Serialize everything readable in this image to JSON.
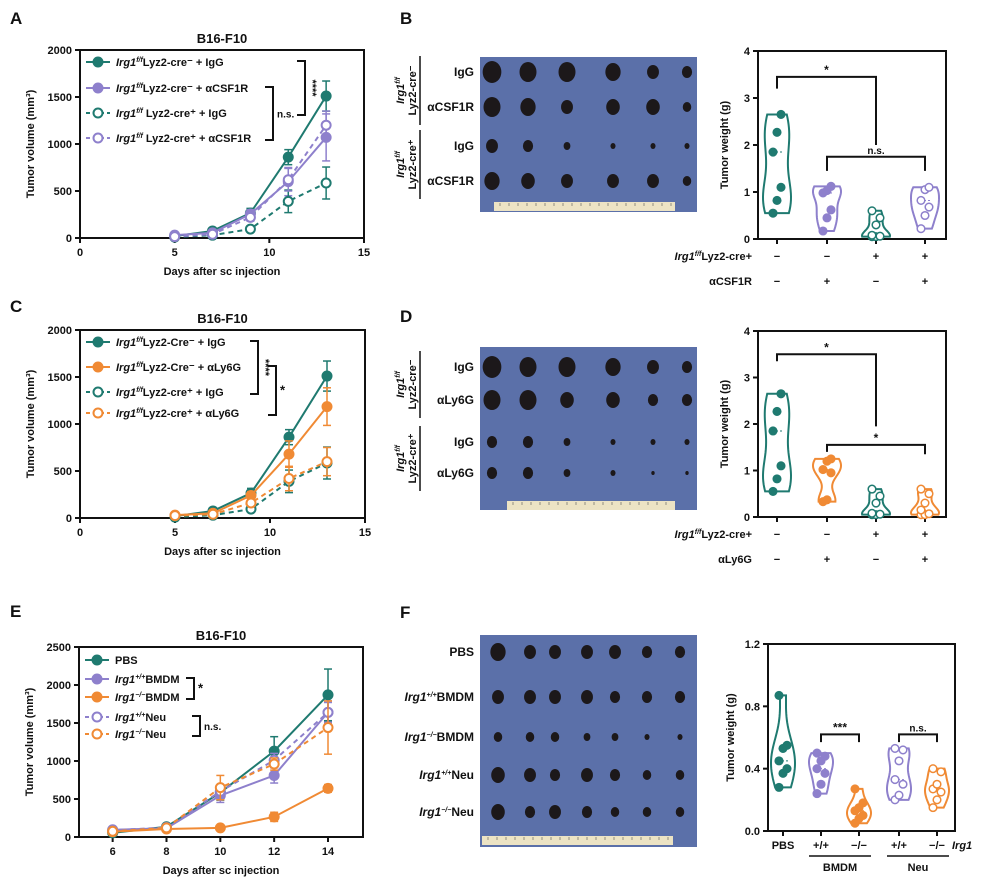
{
  "panel_letters": [
    "A",
    "B",
    "C",
    "D",
    "E",
    "F"
  ],
  "colors": {
    "teal": "#1f7a70",
    "purple": "#8e80cc",
    "orange": "#f08a34",
    "photo_bg": "#5b70a9",
    "tumor": "#1c181a",
    "ruler": "#ece3c4"
  },
  "chart_data": [
    {
      "id": "A",
      "type": "line",
      "title": "B16-F10",
      "xlabel": "Days after sc injection",
      "ylabel": "Tumor volume (mm³)",
      "xlim": [
        0,
        15
      ],
      "ylim": [
        0,
        2000
      ],
      "xticks": [
        0,
        5,
        10,
        15
      ],
      "yticks": [
        0,
        500,
        1000,
        1500,
        2000
      ],
      "x": [
        5,
        7,
        9,
        11,
        13
      ],
      "series": [
        {
          "gene": "Irg1",
          "sup": "f/f",
          "rest": "Lyz2-cre⁻ + IgG",
          "color": "#1f7a70",
          "style": "solid",
          "marker": "filled",
          "values": [
            20,
            75,
            265,
            860,
            1510
          ],
          "err": [
            10,
            20,
            50,
            80,
            160
          ]
        },
        {
          "gene": "Irg1",
          "sup": "f/f",
          "rest": "Lyz2-cre⁻ + αCSF1R",
          "color": "#8e80cc",
          "style": "solid",
          "marker": "filled",
          "values": [
            30,
            55,
            255,
            600,
            1070
          ],
          "err": [
            10,
            15,
            45,
            150,
            250
          ]
        },
        {
          "gene": "Irg1",
          "sup": "f/f",
          "rest": " Lyz2-cre⁺ + IgG",
          "color": "#1f7a70",
          "style": "dashed",
          "marker": "open",
          "values": [
            10,
            30,
            95,
            390,
            585
          ],
          "err": [
            5,
            10,
            20,
            120,
            170
          ]
        },
        {
          "gene": "Irg1",
          "sup": "f/f",
          "rest": " Lyz2-cre⁺ + αCSF1R",
          "color": "#8e80cc",
          "style": "dashed",
          "marker": "open",
          "values": [
            15,
            40,
            220,
            620,
            1200
          ],
          "err": [
            5,
            10,
            40,
            120,
            150
          ]
        }
      ],
      "significance": [
        {
          "label": "****",
          "between": [
            0,
            2
          ]
        },
        {
          "label": "n.s.",
          "between": [
            1,
            3
          ]
        }
      ]
    },
    {
      "id": "B",
      "type": "violin",
      "ylabel": "Tumor weight (g)",
      "ylim": [
        0,
        4
      ],
      "yticks": [
        0,
        1,
        2,
        3,
        4
      ],
      "ytick_labels": [
        "0",
        "1",
        "2",
        "3",
        "4"
      ],
      "row_labels": [
        {
          "gene": "Irg1",
          "sup": "f/f",
          "rest": "Lyz2-cre+"
        },
        {
          "gene": "",
          "sup": "",
          "rest": "αCSF1R"
        }
      ],
      "row_values": [
        [
          "−",
          "−",
          "+",
          "+"
        ],
        [
          "−",
          "+",
          "−",
          "+"
        ]
      ],
      "groups": [
        {
          "color": "#1f7a70",
          "marker": "filled",
          "points": [
            0.55,
            0.82,
            1.1,
            1.85,
            2.27,
            2.65
          ]
        },
        {
          "color": "#8e80cc",
          "marker": "filled",
          "points": [
            0.17,
            0.45,
            0.62,
            0.98,
            1.03,
            1.12
          ]
        },
        {
          "color": "#1f7a70",
          "marker": "open",
          "points": [
            0.05,
            0.05,
            0.06,
            0.08,
            0.3,
            0.45,
            0.6
          ]
        },
        {
          "color": "#8e80cc",
          "marker": "open",
          "points": [
            0.22,
            0.5,
            0.68,
            0.82,
            1.05,
            1.1
          ]
        }
      ],
      "significance": [
        {
          "label": "*",
          "between": [
            0,
            2
          ]
        },
        {
          "label": "n.s.",
          "between": [
            1,
            3
          ]
        }
      ]
    },
    {
      "id": "C",
      "type": "line",
      "title": "B16-F10",
      "xlabel": "Days after sc injection",
      "ylabel": "Tumor volume (mm³)",
      "xlim": [
        0,
        15
      ],
      "ylim": [
        0,
        2000
      ],
      "xticks": [
        0,
        5,
        10,
        15
      ],
      "yticks": [
        0,
        500,
        1000,
        1500,
        2000
      ],
      "x": [
        5,
        7,
        9,
        11,
        13
      ],
      "series": [
        {
          "gene": "Irg1",
          "sup": "f/f",
          "rest": "Lyz2-Cre⁻ + IgG",
          "color": "#1f7a70",
          "style": "solid",
          "marker": "filled",
          "values": [
            20,
            75,
            265,
            860,
            1510
          ],
          "err": [
            10,
            20,
            50,
            80,
            160
          ]
        },
        {
          "gene": "Irg1",
          "sup": "f/f",
          "rest": "Lyz2-Cre⁻ + αLy6G",
          "color": "#f08a34",
          "style": "solid",
          "marker": "filled",
          "values": [
            30,
            50,
            240,
            680,
            1185
          ],
          "err": [
            10,
            15,
            40,
            140,
            200
          ]
        },
        {
          "gene": "Irg1",
          "sup": "f/f",
          "rest": "Lyz2-cre⁺ + IgG",
          "color": "#1f7a70",
          "style": "dashed",
          "marker": "open",
          "values": [
            10,
            30,
            95,
            390,
            585
          ],
          "err": [
            5,
            10,
            20,
            120,
            170
          ]
        },
        {
          "gene": "Irg1",
          "sup": "f/f",
          "rest": "Lyz2-cre⁺ + αLy6G",
          "color": "#f08a34",
          "style": "dashed",
          "marker": "open",
          "values": [
            25,
            40,
            160,
            420,
            600
          ],
          "err": [
            5,
            10,
            30,
            130,
            150
          ]
        }
      ],
      "significance": [
        {
          "label": "****",
          "between": [
            0,
            2
          ]
        },
        {
          "label": "*",
          "between": [
            1,
            3
          ]
        }
      ]
    },
    {
      "id": "D",
      "type": "violin",
      "ylabel": "Tumor weight (g)",
      "ylim": [
        0,
        4
      ],
      "yticks": [
        0,
        1,
        2,
        3,
        4
      ],
      "ytick_labels": [
        "0",
        "1",
        "2",
        "3",
        "4"
      ],
      "row_labels": [
        {
          "gene": "Irg1",
          "sup": "f/f",
          "rest": "Lyz2-cre+"
        },
        {
          "gene": "",
          "sup": "",
          "rest": "αLy6G"
        }
      ],
      "row_values": [
        [
          "−",
          "−",
          "+",
          "+"
        ],
        [
          "−",
          "+",
          "−",
          "+"
        ]
      ],
      "groups": [
        {
          "color": "#1f7a70",
          "marker": "filled",
          "points": [
            0.55,
            0.82,
            1.1,
            1.85,
            2.27,
            2.65
          ]
        },
        {
          "color": "#f08a34",
          "marker": "filled",
          "points": [
            0.33,
            0.37,
            0.95,
            1.02,
            1.2,
            1.25
          ]
        },
        {
          "color": "#1f7a70",
          "marker": "open",
          "points": [
            0.05,
            0.05,
            0.06,
            0.08,
            0.3,
            0.45,
            0.6
          ]
        },
        {
          "color": "#f08a34",
          "marker": "open",
          "points": [
            0.05,
            0.05,
            0.07,
            0.15,
            0.3,
            0.5,
            0.6
          ]
        }
      ],
      "significance": [
        {
          "label": "*",
          "between": [
            0,
            2
          ]
        },
        {
          "label": "*",
          "between": [
            1,
            3
          ]
        }
      ]
    },
    {
      "id": "E",
      "type": "line",
      "title": "B16-F10",
      "xlabel": "Days after sc injection",
      "ylabel": "Tumor volume (mm³)",
      "xlim": [
        4.75,
        15.3
      ],
      "ylim": [
        0,
        2500
      ],
      "xticks": [
        6,
        8,
        10,
        12,
        14
      ],
      "yticks": [
        0,
        500,
        1000,
        1500,
        2000,
        2500
      ],
      "x": [
        6,
        8,
        10,
        12,
        14
      ],
      "series": [
        {
          "gene": "",
          "sup": "",
          "rest": "PBS",
          "color": "#1f7a70",
          "style": "solid",
          "marker": "filled",
          "values": [
            55,
            135,
            585,
            1130,
            1870
          ],
          "err": [
            15,
            25,
            100,
            190,
            340
          ]
        },
        {
          "gene": "Irg1",
          "sup": "+/+",
          "rest": "BMDM",
          "color": "#8e80cc",
          "style": "solid",
          "marker": "filled",
          "values": [
            95,
            115,
            545,
            810,
            1640
          ],
          "err": [
            15,
            20,
            90,
            100,
            150
          ]
        },
        {
          "gene": "Irg1",
          "sup": "−/−",
          "rest": "BMDM",
          "color": "#f08a34",
          "style": "solid",
          "marker": "filled",
          "values": [
            70,
            105,
            120,
            265,
            640
          ],
          "err": [
            10,
            15,
            20,
            60,
            50
          ]
        },
        {
          "gene": "Irg1",
          "sup": "+/+",
          "rest": "Neu",
          "color": "#8e80cc",
          "style": "dashed",
          "marker": "open",
          "values": [
            90,
            125,
            600,
            1010,
            1640
          ],
          "err": [
            15,
            20,
            80,
            90,
            130
          ]
        },
        {
          "gene": "Irg1",
          "sup": "−/−",
          "rest": "Neu",
          "color": "#f08a34",
          "style": "dashed",
          "marker": "open",
          "values": [
            75,
            120,
            650,
            960,
            1440
          ],
          "err": [
            15,
            20,
            160,
            80,
            350
          ]
        }
      ],
      "significance": [
        {
          "label": "*",
          "between": [
            1,
            2
          ]
        },
        {
          "label": "n.s.",
          "between": [
            3,
            4
          ]
        }
      ]
    },
    {
      "id": "F",
      "type": "violin",
      "ylabel": "Tumor weight (g)",
      "ylim": [
        0,
        1.2
      ],
      "yticks": [
        0,
        0.4,
        0.8,
        1.2
      ],
      "ytick_labels": [
        "0.0",
        "0.4",
        "0.8",
        "1.2"
      ],
      "categories": [
        "PBS",
        "+/+",
        "−/−",
        "+/+",
        "−/−"
      ],
      "category_suffix": "Irg1",
      "category_groups": [
        {
          "label": "BMDM",
          "between": [
            1,
            2
          ]
        },
        {
          "label": "Neu",
          "between": [
            3,
            4
          ]
        }
      ],
      "groups": [
        {
          "color": "#1f7a70",
          "marker": "filled",
          "points": [
            0.28,
            0.37,
            0.4,
            0.45,
            0.53,
            0.55,
            0.87
          ]
        },
        {
          "color": "#8e80cc",
          "marker": "filled",
          "points": [
            0.24,
            0.3,
            0.37,
            0.4,
            0.45,
            0.48,
            0.5
          ]
        },
        {
          "color": "#f08a34",
          "marker": "filled",
          "points": [
            0.05,
            0.08,
            0.1,
            0.13,
            0.15,
            0.18,
            0.27
          ]
        },
        {
          "color": "#8e80cc",
          "marker": "open",
          "points": [
            0.2,
            0.23,
            0.3,
            0.33,
            0.45,
            0.52,
            0.53
          ]
        },
        {
          "color": "#f08a34",
          "marker": "open",
          "points": [
            0.15,
            0.2,
            0.25,
            0.27,
            0.3,
            0.38,
            0.4
          ]
        }
      ],
      "significance": [
        {
          "label": "***",
          "between": [
            1,
            2
          ]
        },
        {
          "label": "n.s.",
          "between": [
            3,
            4
          ]
        }
      ]
    }
  ],
  "photos": [
    {
      "id": "B",
      "groups": [
        {
          "gene": "Irg1",
          "sup": "f/f",
          "label": "Lyz2-cre⁻",
          "rows": [
            "IgG",
            "αCSF1R"
          ]
        },
        {
          "gene": "Irg1",
          "sup": "f/f",
          "label": "Lyz2-cre⁺",
          "rows": [
            "IgG",
            "αCSF1R"
          ]
        }
      ]
    },
    {
      "id": "D",
      "groups": [
        {
          "gene": "Irg1",
          "sup": "f/f",
          "label": "Lyz2-cre⁻",
          "rows": [
            "IgG",
            "αLy6G"
          ]
        },
        {
          "gene": "Irg1",
          "sup": "f/f",
          "label": "Lyz2-cre⁺",
          "rows": [
            "IgG",
            "αLy6G"
          ]
        }
      ]
    },
    {
      "id": "F",
      "rows": [
        {
          "gene": "",
          "sup": "",
          "rest": "PBS"
        },
        {
          "gene": "Irg1",
          "sup": "+/+",
          "rest": "BMDM"
        },
        {
          "gene": "Irg1",
          "sup": "−/−",
          "rest": "BMDM"
        },
        {
          "gene": "Irg1",
          "sup": "+/+",
          "rest": "Neu"
        },
        {
          "gene": "Irg1",
          "sup": "−/−",
          "rest": "Neu"
        }
      ]
    }
  ]
}
